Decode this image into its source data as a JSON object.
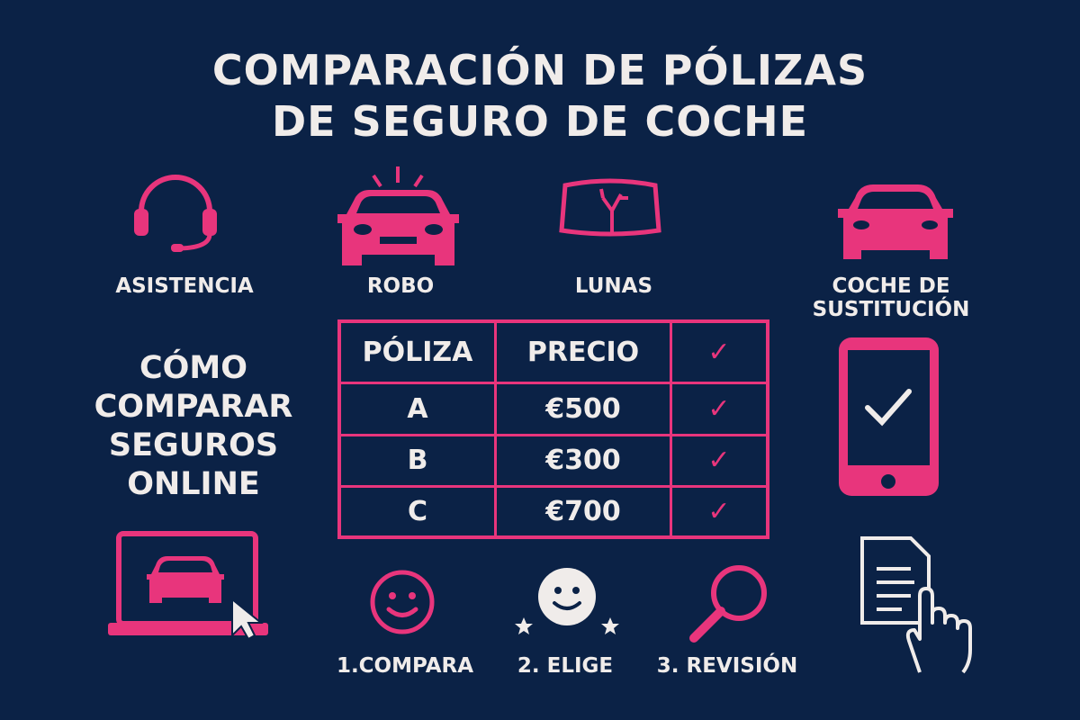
{
  "title": {
    "line1": "COMPARACIÓN DE PÓLIZAS",
    "line2": "DE SEGURO DE COCHE"
  },
  "colors": {
    "background": "#0b2246",
    "accent": "#e8357c",
    "text": "#f0ecea"
  },
  "features": [
    {
      "label": "ASISTENCIA",
      "icon": "headset-icon"
    },
    {
      "label": "ROBO",
      "icon": "car-alarm-icon"
    },
    {
      "label": "LUNAS",
      "icon": "cracked-windshield-icon"
    },
    {
      "label": "COCHE DE SUSTITUCIÓN",
      "icon": "car-icon"
    }
  ],
  "how_to": {
    "line1": "CÓMO",
    "line2": "COMPARAR",
    "line3": "SEGUROS",
    "line4": "ONLINE"
  },
  "table": {
    "headers": [
      "PÓLIZA",
      "PRECIO",
      "✓"
    ],
    "rows": [
      {
        "policy": "A",
        "price": "€500",
        "check": "✓"
      },
      {
        "policy": "B",
        "price": "€300",
        "check": "✓"
      },
      {
        "policy": "C",
        "price": "€700",
        "check": "✓"
      }
    ]
  },
  "steps": [
    {
      "label": "1.COMPARA",
      "icon": "smiley-icon"
    },
    {
      "label": "2. ELIGE",
      "icon": "smiley-stars-icon"
    },
    {
      "label": "3. REVISIÓN",
      "icon": "magnifier-icon"
    }
  ]
}
